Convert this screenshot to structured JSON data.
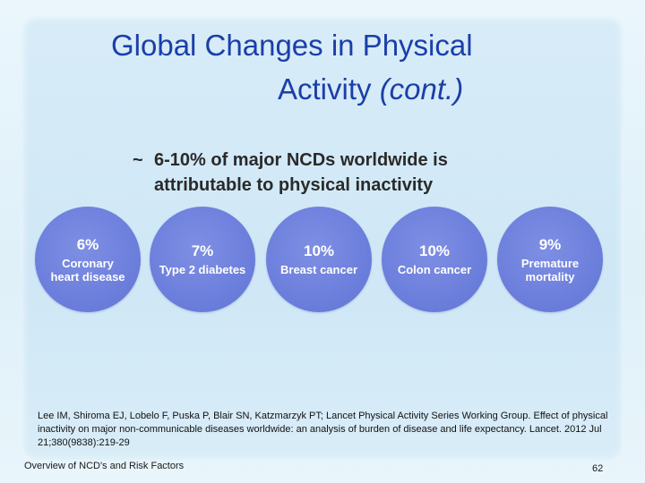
{
  "slide": {
    "title_line1": "Global Changes in Physical",
    "title_line2_main": "Activity ",
    "title_line2_italic": "(cont.)",
    "bullet_mark": "~",
    "bullet_text": "6-10% of major NCDs worldwide is attributable to physical inactivity",
    "circles": [
      {
        "pct": "6%",
        "label": "Coronary\nheart disease"
      },
      {
        "pct": "7%",
        "label": "Type 2 diabetes"
      },
      {
        "pct": "10%",
        "label": "Breast cancer"
      },
      {
        "pct": "10%",
        "label": "Colon cancer"
      },
      {
        "pct": "9%",
        "label": "Premature\nmortality"
      }
    ],
    "reference": "Lee IM, Shiroma EJ, Lobelo F, Puska P, Blair SN, Katzmarzyk PT; Lancet Physical Activity Series Working Group. Effect of physical inactivity on major non-communicable diseases worldwide: an analysis of burden of disease and life expectancy. Lancet. 2012 Jul 21;380(9838):219-29",
    "footer_left": "Overview of NCD's and Risk Factors",
    "page_number": "62"
  },
  "colors": {
    "title": "#1b3fa8",
    "circle_fill": "#6c7fdc",
    "background": "#dff0f9"
  }
}
